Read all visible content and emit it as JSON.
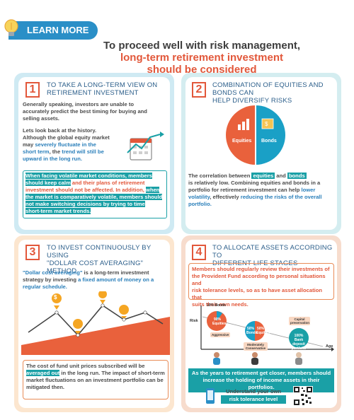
{
  "badge": {
    "label": "LEARN MORE"
  },
  "header": {
    "title_line1": "To proceed well with risk management,",
    "title_line2": "long-term retirement investment",
    "title_line3": "should be considered"
  },
  "panel1": {
    "num": "1",
    "heading_l1": "To take a long-term view on",
    "heading_l2": "retirement investment",
    "p1_l1": "Generally speaking, investors are unable to",
    "p1_l2": "accurately predict the best timing for buying and",
    "p1_l3": "selling assets.",
    "p2_l1": "Lets look back at the history.",
    "p2_l2": "Although the global equity market",
    "p2_l3a": "may ",
    "p2_l3b": "severely fluctuate in the",
    "p2_l4a": "short term",
    "p2_l4b": ", the ",
    "p2_l4c": "trend will still be",
    "p2_l5": "upward in the long run.",
    "box_l1": "When facing volatile market conditions, members",
    "box_l2a": "should keep calm",
    "box_l2b": " and their plans of retirement",
    "box_l3a": "investment should not be affected. In addition, ",
    "box_l3b": "when",
    "box_l4": "the market is comparatively volatile, members should",
    "box_l5": "not make switching decisions by trying to time",
    "box_l6": "short-term market trends."
  },
  "panel2": {
    "num": "2",
    "heading_l1": "Combination of equities and bonds can",
    "heading_l2": "help diversify risks",
    "pie_left": "Equities",
    "pie_right": "Bonds",
    "p_l1a": "The correlation between ",
    "p_l1b": "equities",
    "p_l1c": " and ",
    "p_l1d": "bonds",
    "p_l2": "is relatively low. Combining equities and bonds in a",
    "p_l3a": "portfolio for retirement investment can help ",
    "p_l3b": "lower",
    "p_l4a": "volatility",
    "p_l4b": ", effectively ",
    "p_l4c": "reducing the risks of the overall",
    "p_l5": "portfolio."
  },
  "panel3": {
    "num": "3",
    "heading_l1": "To invest continuously by using",
    "heading_l2": "\"Dollar cost averaging\" method",
    "p_l1a": "\"Dollar cost averaging\"",
    "p_l1b": " is a long-term investment",
    "p_l2a": "strategy by investing ",
    "p_l2b": "a fixed amount of money on a",
    "p_l3": "regular schedule.",
    "coin": "$",
    "box_l1": "The cost of fund unit prices subscribed will be",
    "box_l2a": "averaged out",
    "box_l2b": " in the long run. The impact of short-term",
    "box_l3": "market fluctuations on an investment portfolio can be",
    "box_l4": "mitigated then."
  },
  "panel4": {
    "num": "4",
    "heading_l1": "To allocate assets according to",
    "heading_l2": "different life stages",
    "box_l1": "Members should regularly review their investments of",
    "box_l2": "the Provident Fund according to personal situations and",
    "box_l3": "risk tolerance levels, so as to have asset allocation that",
    "box_l4": "suits their own needs.",
    "bonds10": "10% Bonds",
    "eq90_l1": "90%",
    "eq90_l2": "Equities",
    "aggressive": "Aggressive",
    "b50_l1": "50%",
    "b50_l2": "Bonds",
    "e50_l1": "50%",
    "e50_l2": "Equities",
    "moderate": "Moderately Conservative",
    "cap_pres": "Capital preservation",
    "bank_l1": "100%",
    "bank_l2": "Bank deposit",
    "bank_l3": "portfolio",
    "risk": "Risk",
    "age": "Age",
    "bar_l1": "As the years to retirement get closer, members should",
    "bar_l2": "increase the holding of income assets in their portfolios.",
    "tol_l1": "Understand your own",
    "tol_l2": "risk tolerance level"
  }
}
